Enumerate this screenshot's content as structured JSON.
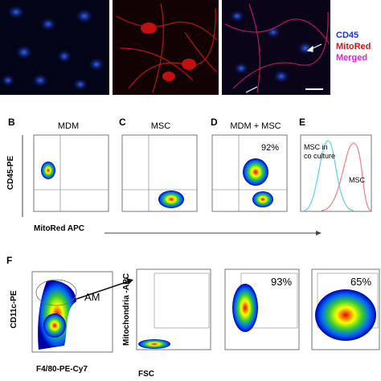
{
  "microscopy": {
    "labels": [
      "CD45",
      "MitoRed",
      "Merged"
    ]
  },
  "panels": [
    {
      "letter": "B",
      "title": "MDM"
    },
    {
      "letter": "C",
      "title": "MSC"
    },
    {
      "letter": "D",
      "title": "MDM + MSC",
      "percent": "92%"
    },
    {
      "letter": "E",
      "annotations": [
        "MSC in",
        "co culture",
        "MSC"
      ]
    }
  ],
  "row_axes": {
    "y_label": "CD45-PE",
    "x_label": "MitoRed APC"
  },
  "panel_f": {
    "letter": "F",
    "gate_label": "AM",
    "y_label_1": "CD11c-PE",
    "x_label_1": "F4/80-PE-Cy7",
    "y_label_2": "Mitochondria -APC",
    "x_label_2": "FSC",
    "percents": [
      "93%",
      "65%"
    ]
  }
}
